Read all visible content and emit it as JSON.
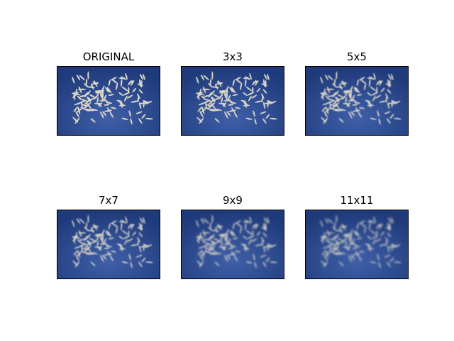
{
  "figure": {
    "panels": [
      {
        "title": "ORIGINAL",
        "blur_level": 0
      },
      {
        "title": "3x3",
        "blur_level": 1
      },
      {
        "title": "5x5",
        "blur_level": 2
      },
      {
        "title": "7x7",
        "blur_level": 3
      },
      {
        "title": "9x9",
        "blur_level": 4
      },
      {
        "title": "11x11",
        "blur_level": 5
      }
    ]
  },
  "colors": {
    "background_edge": "#1f3a7a",
    "background_center": "#3f5fa8",
    "grain": "#d9d6c8"
  }
}
